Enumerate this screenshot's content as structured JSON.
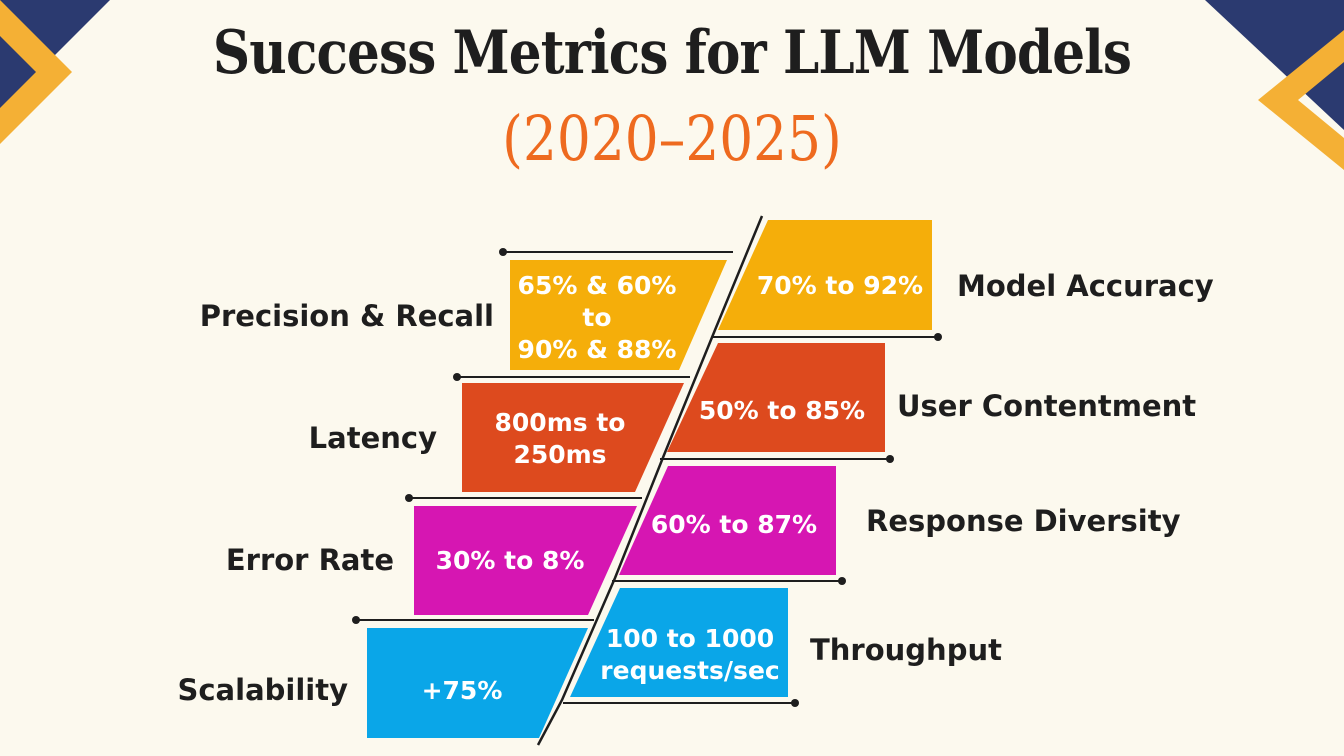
{
  "header": {
    "title": "Success Metrics for LLM Models",
    "subtitle": "(2020–2025)"
  },
  "colors": {
    "background": "#fcf9ee",
    "corner_navy": "#2b3a70",
    "corner_gold": "#f4b035",
    "title_orange": "#ee6a1f",
    "yellow": "#f5ae0a",
    "orange": "#dd4a1e",
    "magenta": "#d616b2",
    "blue": "#0aa6e8"
  },
  "left_metrics": [
    {
      "label": "Precision & Recall",
      "value_lines": [
        "65% & 60%",
        "to",
        "90% & 88%"
      ],
      "color": "yellow"
    },
    {
      "label": "Latency",
      "value_lines": [
        "800ms to",
        "250ms"
      ],
      "color": "orange"
    },
    {
      "label": "Error Rate",
      "value_lines": [
        "30% to 8%"
      ],
      "color": "magenta"
    },
    {
      "label": "Scalability",
      "value_lines": [
        "+75%"
      ],
      "color": "blue"
    }
  ],
  "right_metrics": [
    {
      "label": "Model Accuracy",
      "value_lines": [
        "70% to 92%"
      ],
      "color": "yellow"
    },
    {
      "label": "User Contentment",
      "value_lines": [
        "50% to 85%"
      ],
      "color": "orange"
    },
    {
      "label": "Response Diversity",
      "value_lines": [
        "60% to 87%"
      ],
      "color": "magenta"
    },
    {
      "label": "Throughput",
      "value_lines": [
        "100 to 1000",
        "requests/sec"
      ],
      "color": "blue"
    }
  ]
}
